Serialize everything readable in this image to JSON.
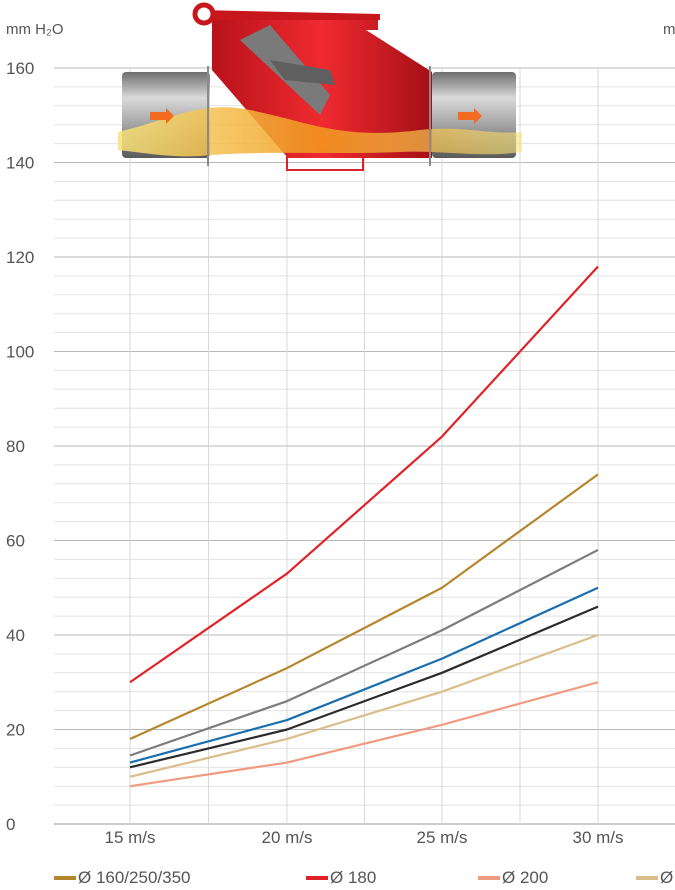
{
  "chart_data": {
    "type": "line",
    "ylabel": "mm H₂O",
    "ylabel_right_partial": "m",
    "ylim": [
      0,
      160
    ],
    "yticks": [
      0,
      20,
      40,
      60,
      80,
      100,
      120,
      140,
      160
    ],
    "categories": [
      "15 m/s",
      "20 m/s",
      "25 m/s",
      "30 m/s"
    ],
    "grid": true,
    "legend_position": "bottom",
    "series": [
      {
        "name": "Ø 160/250/350",
        "color": "#B5862C",
        "values": [
          18,
          33,
          50,
          74
        ]
      },
      {
        "name": "Ø 180",
        "color": "#E02328",
        "values": [
          30,
          53,
          82,
          118
        ]
      },
      {
        "name": "Ø 200",
        "color": "#F09A80",
        "values": [
          8,
          13,
          21,
          30
        ]
      },
      {
        "name": "Ø",
        "color": "#D9BE8C",
        "values": [
          10,
          18,
          28,
          40
        ]
      },
      {
        "name": "",
        "color": "#7E7B7C",
        "values": [
          14.5,
          26,
          41,
          58
        ]
      },
      {
        "name": "",
        "color": "#1A6FAF",
        "values": [
          13,
          22,
          35,
          50
        ]
      },
      {
        "name": "",
        "color": "#2B2B2B",
        "values": [
          12,
          20,
          32,
          46
        ]
      }
    ]
  },
  "illustration": {
    "name": "pipe-valve-illustration",
    "colors": {
      "valve": "#E21F26",
      "pipe": "#9C9C9C",
      "flow": "#F2A01E",
      "arrow": "#F36B21"
    }
  }
}
